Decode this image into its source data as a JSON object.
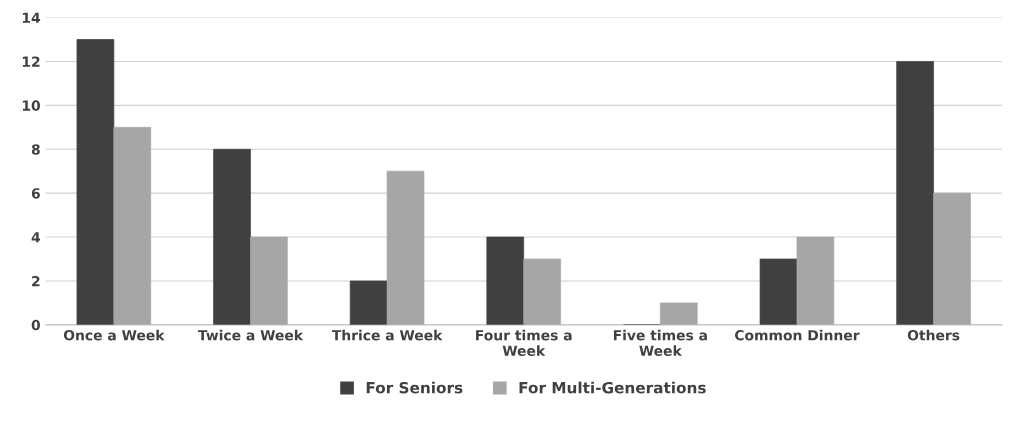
{
  "chart_data": {
    "type": "bar",
    "categories": [
      "Once a Week",
      "Twice a Week",
      "Thrice a Week",
      "Four times a Week",
      "Five times a Week",
      "Common Dinner",
      "Others"
    ],
    "series": [
      {
        "name": "For Seniors",
        "color": "#404040",
        "values": [
          13,
          8,
          2,
          4,
          0,
          3,
          12
        ]
      },
      {
        "name": "For Multi-Generations",
        "color": "#a6a6a6",
        "values": [
          9,
          4,
          7,
          3,
          1,
          4,
          6
        ]
      }
    ],
    "ylim": [
      0,
      14
    ],
    "yticks": [
      0,
      2,
      4,
      6,
      8,
      10,
      12,
      14
    ],
    "grid": "y",
    "legend": "bottom"
  }
}
